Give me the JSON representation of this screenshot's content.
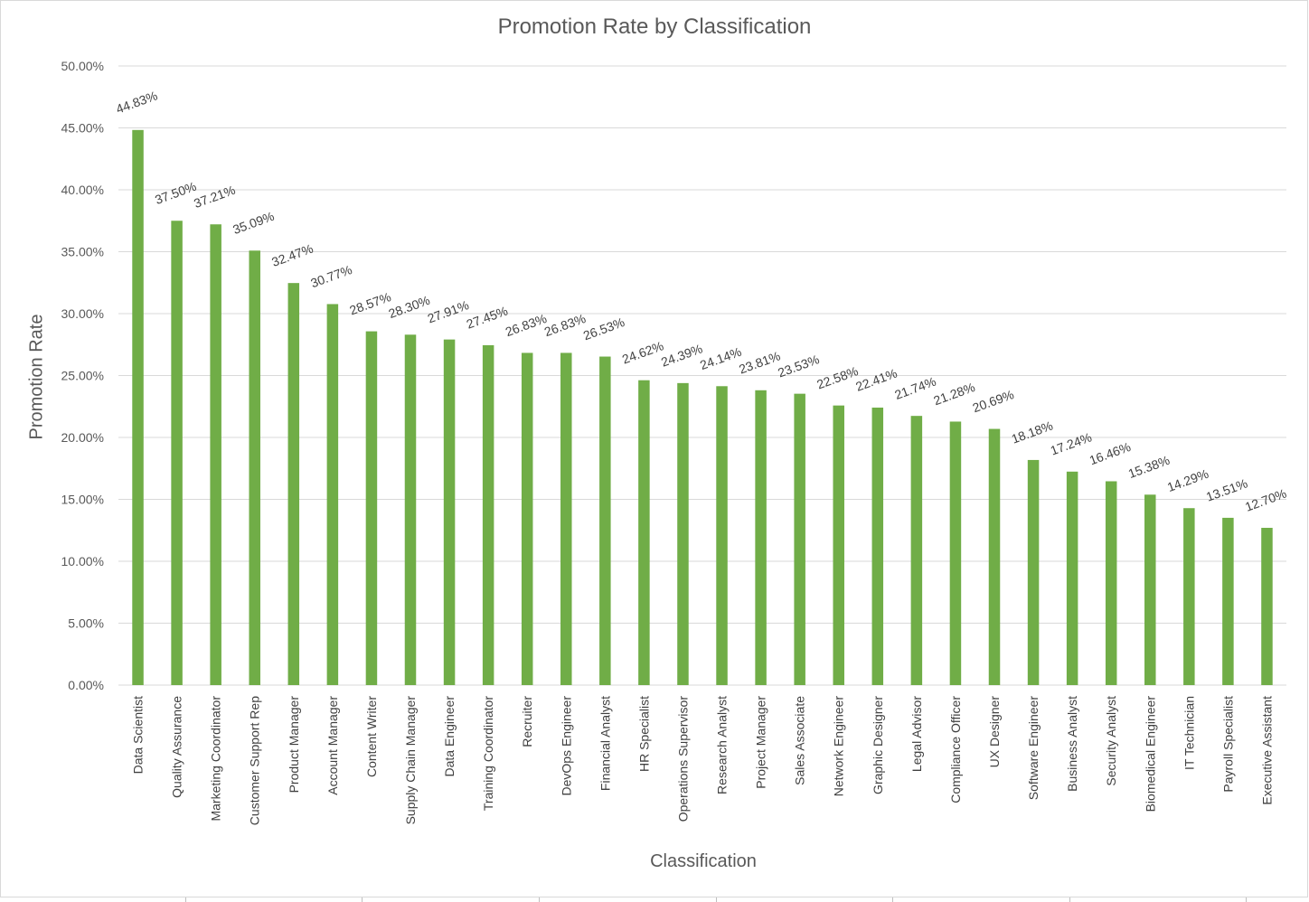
{
  "chart_data": {
    "type": "bar",
    "title": "Promotion Rate by Classification",
    "xlabel": "Classification",
    "ylabel": "Promotion Rate",
    "ylim": [
      0,
      0.5
    ],
    "ytick_step": 0.05,
    "yticks": [
      "0.00%",
      "5.00%",
      "10.00%",
      "15.00%",
      "20.00%",
      "25.00%",
      "30.00%",
      "35.00%",
      "40.00%",
      "45.00%",
      "50.00%"
    ],
    "grid": true,
    "legend": "none",
    "bar_color": "#70ad47",
    "categories": [
      "Data Scientist",
      "Quality Assurance",
      "Marketing Coordinator",
      "Customer Support Rep",
      "Product Manager",
      "Account Manager",
      "Content Writer",
      "Supply Chain Manager",
      "Data Engineer",
      "Training Coordinator",
      "Recruiter",
      "DevOps Engineer",
      "Financial Analyst",
      "HR Specialist",
      "Operations Supervisor",
      "Research Analyst",
      "Project Manager",
      "Sales Associate",
      "Network Engineer",
      "Graphic Designer",
      "Legal Advisor",
      "Compliance Officer",
      "UX Designer",
      "Software Engineer",
      "Business Analyst",
      "Security Analyst",
      "Biomedical Engineer",
      "IT Technician",
      "Payroll Specialist",
      "Executive Assistant"
    ],
    "values": [
      0.4483,
      0.375,
      0.3721,
      0.3509,
      0.3247,
      0.3077,
      0.2857,
      0.283,
      0.2791,
      0.2745,
      0.2683,
      0.2683,
      0.2653,
      0.2462,
      0.2439,
      0.2414,
      0.2381,
      0.2353,
      0.2258,
      0.2241,
      0.2174,
      0.2128,
      0.2069,
      0.1818,
      0.1724,
      0.1646,
      0.1538,
      0.1429,
      0.1351,
      0.127
    ],
    "data_labels": [
      "44.83%",
      "37.50%",
      "37.21%",
      "35.09%",
      "32.47%",
      "30.77%",
      "28.57%",
      "28.30%",
      "27.91%",
      "27.45%",
      "26.83%",
      "26.83%",
      "26.53%",
      "24.62%",
      "24.39%",
      "24.14%",
      "23.81%",
      "23.53%",
      "22.58%",
      "22.41%",
      "21.74%",
      "21.28%",
      "20.69%",
      "18.18%",
      "17.24%",
      "16.46%",
      "15.38%",
      "14.29%",
      "13.51%",
      "12.70%"
    ]
  }
}
